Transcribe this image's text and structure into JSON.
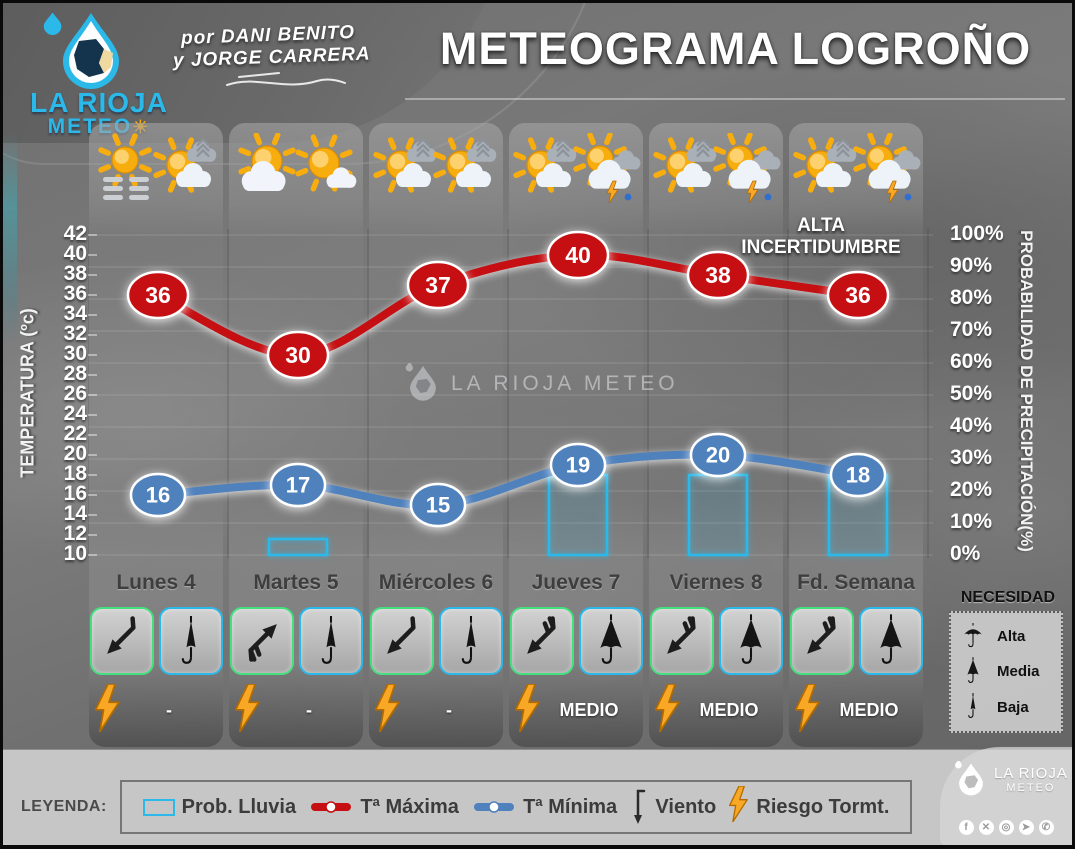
{
  "header": {
    "title": "METEOGRAMA LOGROÑO",
    "credit_line1": "por DANI BENITO",
    "credit_line2": "y JORGE CARRERA"
  },
  "brand": {
    "name": "LA RIOJA",
    "sub": "METEO"
  },
  "watermark": "LA RIOJA METEO",
  "annotation": {
    "line1": "ALTA",
    "line2": "INCERTIDUMBRE"
  },
  "chart_data": {
    "type": "line",
    "categories": [
      "Lunes 4",
      "Martes 5",
      "Miércoles 6",
      "Jueves 7",
      "Viernes 8",
      "Fd. Semana"
    ],
    "series": [
      {
        "name": "Tª Máxima",
        "type": "line",
        "values": [
          36,
          30,
          37,
          40,
          38,
          36
        ],
        "color": "#c50f12"
      },
      {
        "name": "Tª Mínima",
        "type": "line",
        "values": [
          16,
          17,
          15,
          19,
          20,
          18
        ],
        "color": "#4f81bd"
      },
      {
        "name": "Prob. Lluvia",
        "type": "bar",
        "unit": "%",
        "values": [
          0,
          5,
          0,
          25,
          25,
          25
        ],
        "color": "#2bb9ea"
      }
    ],
    "left_axis": {
      "label": "TEMPERATURA (ºc)",
      "min": 10,
      "max": 42,
      "step": 2
    },
    "right_axis": {
      "label": "PROBABILIDAD DE PRECIPITACIÓN(%)",
      "min": 0,
      "max": 100,
      "step": 10,
      "suffix": "%"
    },
    "grid": true,
    "legend_position": "bottom",
    "annotation": {
      "text": "ALTA INCERTIDUMBRE",
      "near": "Viernes 8"
    }
  },
  "days": [
    {
      "label": "Lunes 4",
      "icons": [
        "sun_fog",
        "sun_cloud_wind"
      ],
      "wind_dir": "nw",
      "wind_barbs": false,
      "umbrella": "baja",
      "risk": "-"
    },
    {
      "label": "Martes 5",
      "icons": [
        "sun_bigcloud",
        "sun_smallcloud"
      ],
      "wind_dir": "se",
      "wind_barbs": true,
      "umbrella": "baja",
      "risk": "-"
    },
    {
      "label": "Miércoles 6",
      "icons": [
        "sun_cloud_wind",
        "sun_cloud_wind"
      ],
      "wind_dir": "nw",
      "wind_barbs": false,
      "umbrella": "baja",
      "risk": "-"
    },
    {
      "label": "Jueves 7",
      "icons": [
        "sun_cloud_wind",
        "sun_storm"
      ],
      "wind_dir": "nw",
      "wind_barbs": true,
      "umbrella": "media",
      "risk": "MEDIO"
    },
    {
      "label": "Viernes 8",
      "icons": [
        "sun_cloud_wind",
        "sun_storm"
      ],
      "wind_dir": "nw",
      "wind_barbs": true,
      "umbrella": "media",
      "risk": "MEDIO"
    },
    {
      "label": "Fd. Semana",
      "icons": [
        "sun_cloud_wind",
        "sun_storm"
      ],
      "wind_dir": "nw",
      "wind_barbs": true,
      "umbrella": "media",
      "risk": "MEDIO"
    }
  ],
  "necesidad": {
    "title": "NECESIDAD",
    "items": [
      {
        "label": "Alta",
        "type": "alta"
      },
      {
        "label": "Media",
        "type": "media"
      },
      {
        "label": "Baja",
        "type": "baja"
      }
    ]
  },
  "legend": {
    "label": "LEYENDA:",
    "items": [
      {
        "swatch": "rain-bar",
        "label": "Prob. Lluvia"
      },
      {
        "swatch": "line-red",
        "label": "Tª Máxima"
      },
      {
        "swatch": "line-blue",
        "label": "Tª Mínima"
      },
      {
        "swatch": "wind-arrow",
        "label": "Viento"
      },
      {
        "swatch": "lightning",
        "label": "Riesgo Tormt."
      }
    ]
  },
  "footer": {
    "brand": "LA RIOJA",
    "sub": "METEO",
    "social": [
      "facebook",
      "x",
      "instagram",
      "telegram",
      "whatsapp"
    ]
  },
  "colors": {
    "tmax": "#c50f12",
    "tmin": "#4f81bd",
    "rain": "#2bb9ea",
    "sun": "#f8ad0e",
    "bolt": "#f9a825",
    "box_wind_border": "#45e07e",
    "box_umb_border": "#2bb9ea"
  }
}
